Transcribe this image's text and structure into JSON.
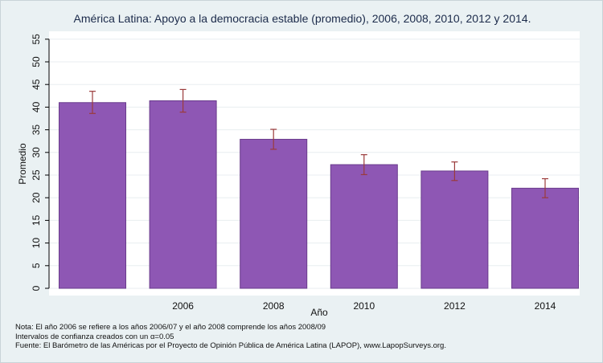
{
  "chart_data": {
    "type": "bar",
    "title": "América Latina: Apoyo a la democracia estable (promedio), 2006, 2008, 2010, 2012 y 2014.",
    "xlabel": "Año",
    "ylabel": "Promedio",
    "ylim": [
      0,
      55
    ],
    "yticks": [
      "0",
      "5",
      "10",
      "15",
      "20",
      "25",
      "30",
      "35",
      "40",
      "45",
      "50",
      "55"
    ],
    "categories": [
      "",
      "2006",
      "2008",
      "2010",
      "2012",
      "2014"
    ],
    "values": [
      41.0,
      41.4,
      32.9,
      27.3,
      25.9,
      22.1
    ],
    "ci_low": [
      38.6,
      38.9,
      30.7,
      25.1,
      23.8,
      20.0
    ],
    "ci_high": [
      43.5,
      43.9,
      35.1,
      29.5,
      27.9,
      24.2
    ],
    "grid": true,
    "colors": {
      "bar": "#8e57b4",
      "bar_edge": "#6a3b8c",
      "error_bar": "#9b3b3b",
      "grid": "#ffffff",
      "plot_bg": "#ffffff"
    }
  },
  "notes": {
    "line1": "Nota: El año 2006 se refiere a los años 2006/07 y el año 2008 comprende los años 2008/09",
    "line2": "Intervalos de confianza creados con un α=0.05",
    "line3": "Fuente: El Barómetro de las Américas por el Proyecto de Opinión Pública de América Latina (LAPOP), www.LapopSurveys.org."
  }
}
